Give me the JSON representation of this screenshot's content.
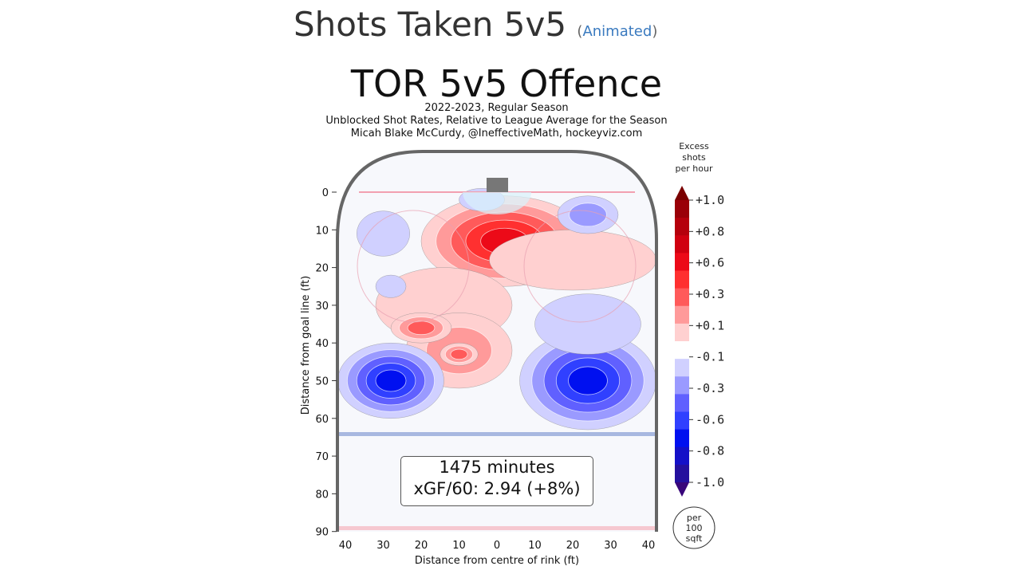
{
  "page": {
    "title": "Shots Taken 5v5",
    "animated_link": "Animated",
    "paren_open": "(",
    "paren_close": ")"
  },
  "chart_data": {
    "type": "heatmap",
    "title": "TOR 5v5 Offence",
    "subtitles": [
      "2022-2023, Regular Season",
      "Unblocked Shot Rates, Relative to League Average for the Season",
      "Micah Blake McCurdy, @IneffectiveMath, hockeyviz.com"
    ],
    "xlabel": "Distance from centre of rink (ft)",
    "ylabel": "Distance from goal line (ft)",
    "xlim": [
      -42,
      42
    ],
    "ylim": [
      0,
      90
    ],
    "xticks": [
      {
        "v": -40,
        "l": "40"
      },
      {
        "v": -30,
        "l": "30"
      },
      {
        "v": -20,
        "l": "20"
      },
      {
        "v": -10,
        "l": "10"
      },
      {
        "v": 0,
        "l": "0"
      },
      {
        "v": 10,
        "l": "10"
      },
      {
        "v": 20,
        "l": "20"
      },
      {
        "v": 30,
        "l": "30"
      },
      {
        "v": 40,
        "l": "40"
      }
    ],
    "yticks": [
      0,
      10,
      20,
      30,
      40,
      50,
      60,
      70,
      80,
      90
    ],
    "colorbar": {
      "title": [
        "Excess",
        "shots",
        "per hour"
      ],
      "ticks": [
        "+1.0",
        "+0.8",
        "+0.6",
        "+0.3",
        "+0.1",
        "-0.1",
        "-0.3",
        "-0.6",
        "-0.8",
        "-1.0"
      ],
      "unit": [
        "per",
        "100",
        "sqft"
      ],
      "colors": [
        "#7a0000",
        "#9a0008",
        "#b5000c",
        "#d00010",
        "#ec0a18",
        "#ff3030",
        "#ff5a5a",
        "#ff9a9a",
        "#ffd0d0",
        "#ffffff",
        "#d0d0ff",
        "#9a9aff",
        "#6060ff",
        "#3040ff",
        "#0010f0",
        "#1410c8",
        "#24109e",
        "#38067a"
      ]
    },
    "hotspots": [
      {
        "x": 2,
        "y": 13,
        "rx": 22,
        "ry": 12,
        "value": 0.6
      },
      {
        "x": 20,
        "y": 18,
        "rx": 22,
        "ry": 8,
        "value": 0.1
      },
      {
        "x": -14,
        "y": 30,
        "rx": 18,
        "ry": 10,
        "value": 0.1
      },
      {
        "x": -10,
        "y": 42,
        "rx": 14,
        "ry": 10,
        "value": 0.2
      },
      {
        "x": -20,
        "y": 36,
        "rx": 8,
        "ry": 4,
        "value": 0.3
      },
      {
        "x": -10,
        "y": 43,
        "rx": 5,
        "ry": 3,
        "value": 0.3
      },
      {
        "x": -28,
        "y": 50,
        "rx": 14,
        "ry": 10,
        "value": -0.6
      },
      {
        "x": 24,
        "y": 50,
        "rx": 18,
        "ry": 13,
        "value": -0.6
      },
      {
        "x": 24,
        "y": 35,
        "rx": 14,
        "ry": 8,
        "value": -0.1
      },
      {
        "x": -30,
        "y": 11,
        "rx": 7,
        "ry": 6,
        "value": -0.1
      },
      {
        "x": -28,
        "y": 25,
        "rx": 4,
        "ry": 3,
        "value": -0.1
      },
      {
        "x": 24,
        "y": 6,
        "rx": 8,
        "ry": 5,
        "value": -0.2
      },
      {
        "x": -4,
        "y": 2,
        "rx": 6,
        "ry": 3,
        "value": -0.1
      }
    ],
    "annotation": [
      "1475 minutes",
      "xGF/60: 2.94 (+8%)"
    ]
  }
}
